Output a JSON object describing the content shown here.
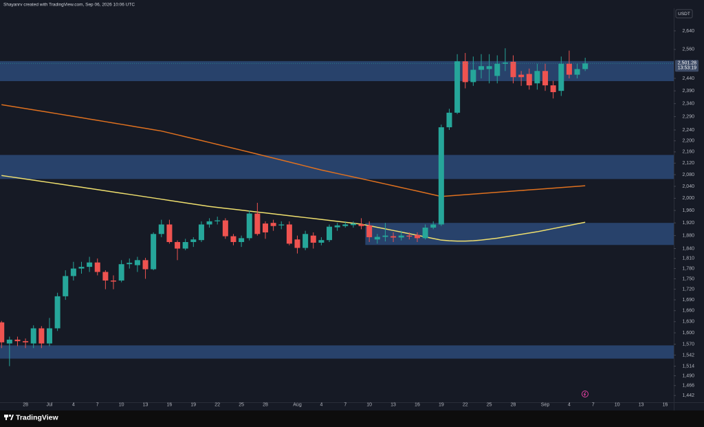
{
  "attribution": "Shayanrv created with TradingView.com, Sep 06, 2026 10:06 UTC",
  "brand": "TradingView",
  "chart_data": {
    "type": "candlestick",
    "currency": "USDT",
    "categories": [
      null,
      null,
      null,
      "28",
      null,
      null,
      "Jul",
      null,
      null,
      "4",
      null,
      null,
      "7",
      null,
      null,
      "10",
      null,
      null,
      "13",
      null,
      null,
      "16",
      null,
      null,
      "19",
      null,
      null,
      "22",
      null,
      null,
      "25",
      null,
      null,
      "28",
      null,
      null,
      null,
      "Aug",
      null,
      null,
      "4",
      null,
      null,
      "7",
      null,
      null,
      "10",
      null,
      null,
      "13",
      null,
      null,
      "16",
      null,
      null,
      "19",
      null,
      null,
      "22",
      null,
      null,
      "25",
      null,
      null,
      "28",
      null,
      null,
      null,
      "Sep",
      null,
      null,
      "4",
      null,
      null,
      "7",
      null,
      null,
      "10",
      null,
      null,
      "13",
      null,
      null,
      "16",
      null
    ],
    "open": [
      1628,
      1572,
      1582,
      1578,
      1572,
      1612,
      1572,
      1612,
      1700,
      1758,
      1780,
      1785,
      1798,
      1770,
      1745,
      1745,
      1793,
      1790,
      1805,
      1778,
      1885,
      1915,
      1860,
      1840,
      1860,
      1866,
      1915,
      1925,
      1928,
      1878,
      1860,
      1872,
      1950,
      1918,
      1920,
      1912,
      1915,
      1868,
      1842,
      1880,
      1858,
      1866,
      1906,
      1910,
      1913,
      1916,
      1912,
      1868,
      1876,
      1878,
      1874,
      1880,
      1882,
      1872,
      1905,
      1915,
      2250,
      2305,
      2510,
      2425,
      2475,
      2478,
      2450,
      2500,
      2508,
      2455,
      2458,
      2420,
      2470,
      2412,
      2390,
      2500,
      2455,
      2478,
      null,
      null,
      null,
      null,
      null,
      null,
      null,
      null,
      null,
      null,
      null
    ],
    "high": [
      1632,
      1590,
      1590,
      1585,
      1620,
      1618,
      1640,
      1710,
      1775,
      1800,
      1800,
      1815,
      1810,
      1775,
      1760,
      1805,
      1810,
      1815,
      1812,
      1890,
      1930,
      1930,
      1865,
      1870,
      1875,
      1925,
      1935,
      1940,
      1935,
      1885,
      1880,
      1960,
      1985,
      1925,
      1930,
      1925,
      1925,
      1880,
      1895,
      1890,
      1875,
      1915,
      1920,
      1925,
      1925,
      1935,
      1925,
      1885,
      1920,
      1890,
      1895,
      1890,
      1890,
      1915,
      1925,
      2260,
      2320,
      2540,
      2545,
      2530,
      2540,
      2540,
      2535,
      2565,
      2535,
      2470,
      2480,
      2500,
      2500,
      2430,
      2530,
      2555,
      2500,
      2525,
      null,
      null,
      null,
      null,
      null,
      null,
      null,
      null,
      null,
      null,
      null
    ],
    "low": [
      1560,
      1514,
      1565,
      1560,
      1560,
      1560,
      1565,
      1605,
      1690,
      1745,
      1765,
      1770,
      1760,
      1720,
      1720,
      1740,
      1780,
      1770,
      1750,
      1775,
      1875,
      1855,
      1805,
      1835,
      1845,
      1860,
      1905,
      1915,
      1870,
      1850,
      1845,
      1865,
      1880,
      1870,
      1895,
      1900,
      1850,
      1825,
      1835,
      1840,
      1850,
      1860,
      1895,
      1905,
      1905,
      1900,
      1860,
      1855,
      1862,
      1860,
      1865,
      1868,
      1860,
      1868,
      1900,
      1910,
      2240,
      2300,
      2400,
      2410,
      2440,
      2420,
      2420,
      2470,
      2420,
      2410,
      2395,
      2395,
      2390,
      2360,
      2370,
      2440,
      2440,
      2470,
      null,
      null,
      null,
      null,
      null,
      null,
      null,
      null,
      null,
      null,
      null
    ],
    "close": [
      1575,
      1582,
      1578,
      1575,
      1612,
      1572,
      1612,
      1700,
      1758,
      1780,
      1785,
      1798,
      1770,
      1745,
      1742,
      1793,
      1797,
      1805,
      1778,
      1885,
      1915,
      1860,
      1840,
      1860,
      1868,
      1915,
      1925,
      1928,
      1878,
      1860,
      1872,
      1950,
      1885,
      1890,
      1910,
      1915,
      1855,
      1842,
      1885,
      1858,
      1866,
      1908,
      1912,
      1915,
      1918,
      1910,
      1875,
      1876,
      1880,
      1874,
      1880,
      1877,
      1872,
      1905,
      1915,
      2250,
      2305,
      2510,
      2425,
      2475,
      2490,
      2490,
      2500,
      2505,
      2445,
      2445,
      2412,
      2470,
      2412,
      2385,
      2500,
      2455,
      2478,
      2501.28,
      null,
      null,
      null,
      null,
      null,
      null,
      null,
      null,
      null,
      null,
      null
    ],
    "up_color": "#26a69a",
    "down_color": "#ef5350",
    "lines": [
      {
        "color": "#e0711f",
        "values": [
          2336,
          2331,
          2326,
          2321,
          2316,
          2311,
          2306,
          2301,
          2296,
          2291,
          2286,
          2281,
          2276,
          2271,
          2266,
          2261,
          2256,
          2251,
          2246,
          2241,
          2236,
          2229,
          2222,
          2215,
          2208,
          2201,
          2194,
          2187,
          2180,
          2173,
          2166,
          2159,
          2152,
          2145,
          2138,
          2131,
          2124,
          2117,
          2110,
          2103,
          2096,
          2090,
          2084,
          2078,
          2072,
          2066,
          2060,
          2054,
          2048,
          2042,
          2036,
          2030,
          2024,
          2018,
          2012,
          2006,
          2008,
          2010,
          2012,
          2014,
          2016,
          2018,
          2020,
          2022,
          2024,
          2026,
          2028,
          2030,
          2032,
          2034,
          2036,
          2038,
          2040,
          2042,
          null,
          null,
          null,
          null,
          null,
          null,
          null,
          null,
          null,
          null,
          null
        ]
      },
      {
        "color": "#f0e06e",
        "values": [
          2077,
          2073,
          2069,
          2065,
          2061,
          2057,
          2053,
          2049,
          2045,
          2041,
          2037,
          2033,
          2029,
          2025,
          2021,
          2017,
          2013,
          2009,
          2005,
          2001,
          1997,
          1993,
          1989,
          1985,
          1981,
          1977,
          1973,
          1970,
          1967,
          1964,
          1961,
          1958,
          1955,
          1952,
          1949,
          1946,
          1943,
          1940,
          1937,
          1934,
          1931,
          1928,
          1925,
          1922,
          1919,
          1916,
          1911,
          1906,
          1901,
          1896,
          1891,
          1886,
          1881,
          1876,
          1871,
          1866,
          1864,
          1863,
          1863,
          1864,
          1866,
          1869,
          1872,
          1876,
          1880,
          1884,
          1888,
          1892,
          1897,
          1902,
          1907,
          1912,
          1917,
          1922,
          null,
          null,
          null,
          null,
          null,
          null,
          null,
          null,
          null,
          null,
          null
        ]
      }
    ],
    "zone_color": "#2c4a78",
    "zones": [
      {
        "from": 2429,
        "to": 2511
      },
      {
        "from": 2065,
        "to": 2149
      },
      {
        "from": 1851,
        "to": 1920,
        "start": 46
      },
      {
        "from": 1533,
        "to": 1567
      }
    ],
    "log_scale": true,
    "grid": false,
    "ylim": [
      1426,
      2741
    ],
    "yticks": [
      {
        "value": 2640,
        "label": "2,640"
      },
      {
        "value": 2560,
        "label": "2,560"
      },
      {
        "value": 2440,
        "label": "2,440"
      },
      {
        "value": 2390,
        "label": "2,390"
      },
      {
        "value": 2340,
        "label": "2,340"
      },
      {
        "value": 2290,
        "label": "2,290"
      },
      {
        "value": 2240,
        "label": "2,240"
      },
      {
        "value": 2200,
        "label": "2,200"
      },
      {
        "value": 2160,
        "label": "2,160"
      },
      {
        "value": 2120,
        "label": "2,120"
      },
      {
        "value": 2080,
        "label": "2,080"
      },
      {
        "value": 2040,
        "label": "2,040"
      },
      {
        "value": 2000,
        "label": "2,000"
      },
      {
        "value": 1960,
        "label": "1,960"
      },
      {
        "value": 1920,
        "label": "1,920"
      },
      {
        "value": 1880,
        "label": "1,880"
      },
      {
        "value": 1840,
        "label": "1,840"
      },
      {
        "value": 1810,
        "label": "1,810"
      },
      {
        "value": 1780,
        "label": "1,780"
      },
      {
        "value": 1750,
        "label": "1,750"
      },
      {
        "value": 1720,
        "label": "1,720"
      },
      {
        "value": 1690,
        "label": "1,690"
      },
      {
        "value": 1660,
        "label": "1,660"
      },
      {
        "value": 1630,
        "label": "1,630"
      },
      {
        "value": 1600,
        "label": "1,600"
      },
      {
        "value": 1570,
        "label": "1,570"
      },
      {
        "value": 1542,
        "label": "1,542"
      },
      {
        "value": 1514,
        "label": "1,514"
      },
      {
        "value": 1490,
        "label": "1,490"
      },
      {
        "value": 1466,
        "label": "1,466"
      },
      {
        "value": 1442,
        "label": "1,442"
      }
    ],
    "last_price": {
      "value": 2501.28,
      "label": "2,501.28"
    },
    "countdown": "13:53:19"
  }
}
